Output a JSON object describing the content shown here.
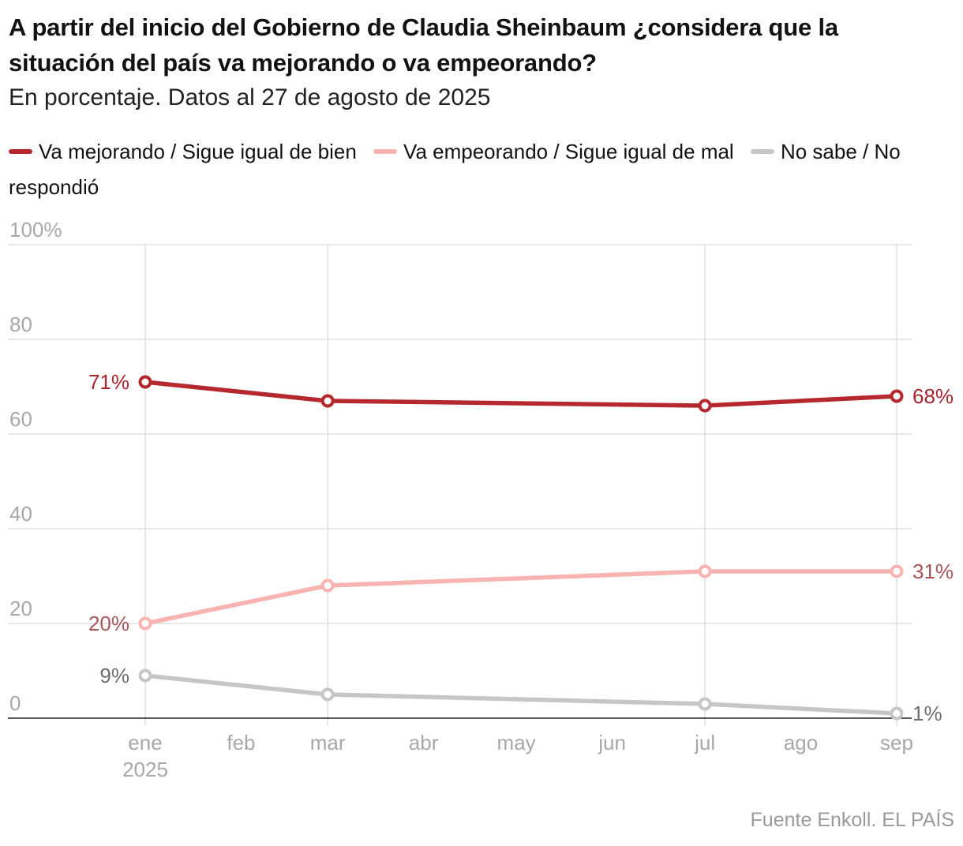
{
  "title": "A partir del inicio del Gobierno de Claudia Sheinbaum ¿considera que la situación del país va mejorando o va empeorando?",
  "subtitle": "En porcentaje. Datos al 27 de agosto de 2025",
  "source": "Fuente Enkoll. EL PAÍS",
  "legend": [
    {
      "label": "Va mejorando / Sigue igual de bien",
      "color": "#b5282e"
    },
    {
      "label": "Va empeorando / Sigue igual de mal",
      "color": "#f9b3b1"
    },
    {
      "label": "No sabe / No respondió",
      "color": "#c6c6c6"
    }
  ],
  "chart_data": {
    "type": "line",
    "x_ticks": [
      {
        "label": "ene",
        "sub": "2025",
        "month": 0
      },
      {
        "label": "feb",
        "sub": "",
        "month": 1
      },
      {
        "label": "mar",
        "sub": "",
        "month": 2
      },
      {
        "label": "abr",
        "sub": "",
        "month": 3
      },
      {
        "label": "may",
        "sub": "",
        "month": 4
      },
      {
        "label": "jun",
        "sub": "",
        "month": 5
      },
      {
        "label": "jul",
        "sub": "",
        "month": 6
      },
      {
        "label": "ago",
        "sub": "",
        "month": 7
      },
      {
        "label": "sep",
        "sub": "",
        "month": 8
      }
    ],
    "y_ticks": [
      "0",
      "20",
      "40",
      "60",
      "80",
      "100%"
    ],
    "ylim": [
      0,
      100
    ],
    "x_range": [
      "2024-12-15",
      "2025-09-10"
    ],
    "x": [
      "2025-01",
      "2025-03",
      "2025-07",
      "2025-09"
    ],
    "grid_x": [
      "2025-01",
      "2025-03",
      "2025-07",
      "2025-09"
    ],
    "series": [
      {
        "name": "Va mejorando / Sigue igual de bien",
        "color": "#b5282e",
        "label_color": "#a8262c",
        "values": [
          71,
          67,
          66,
          68
        ],
        "first_label": "71%",
        "last_label": "68%"
      },
      {
        "name": "Va empeorando / Sigue igual de mal",
        "color": "#f9b3b1",
        "label_color": "#a8565a",
        "values": [
          20,
          28,
          31,
          31
        ],
        "first_label": "20%",
        "last_label": "31%"
      },
      {
        "name": "No sabe / No respondió",
        "color": "#c6c6c6",
        "label_color": "#6e6e6e",
        "values": [
          9,
          5,
          3,
          1
        ],
        "first_label": "9%",
        "last_label": "1%"
      }
    ]
  }
}
